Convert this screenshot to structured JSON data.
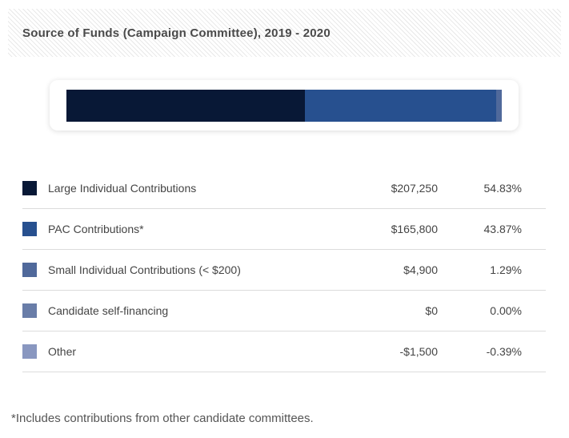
{
  "header": {
    "title": "Source of Funds (Campaign Committee), 2019 - 2020"
  },
  "footnote": "*Includes contributions from other candidate committees.",
  "chart_data": {
    "type": "bar",
    "subtype": "horizontal-stacked-single-bar",
    "title": "Source of Funds (Campaign Committee), 2019 - 2020",
    "categories": [
      "Large Individual Contributions",
      "PAC Contributions*",
      "Small Individual Contributions (< $200)",
      "Candidate self-financing",
      "Other"
    ],
    "values": [
      207250,
      165800,
      4900,
      0,
      -1500
    ],
    "percents": [
      54.83,
      43.87,
      1.29,
      0.0,
      -0.39
    ],
    "amount_labels": [
      "$207,250",
      "$165,800",
      "$4,900",
      "$0",
      "-$1,500"
    ],
    "percent_labels": [
      "54.83%",
      "43.87%",
      "1.29%",
      "0.00%",
      "-0.39%"
    ],
    "colors": [
      "#081836",
      "#27508f",
      "#50699b",
      "#697da8",
      "#8997c0"
    ],
    "legend_position": "bottom-table",
    "axes": "none",
    "grid": false,
    "footnote": "*Includes contributions from other candidate committees."
  }
}
